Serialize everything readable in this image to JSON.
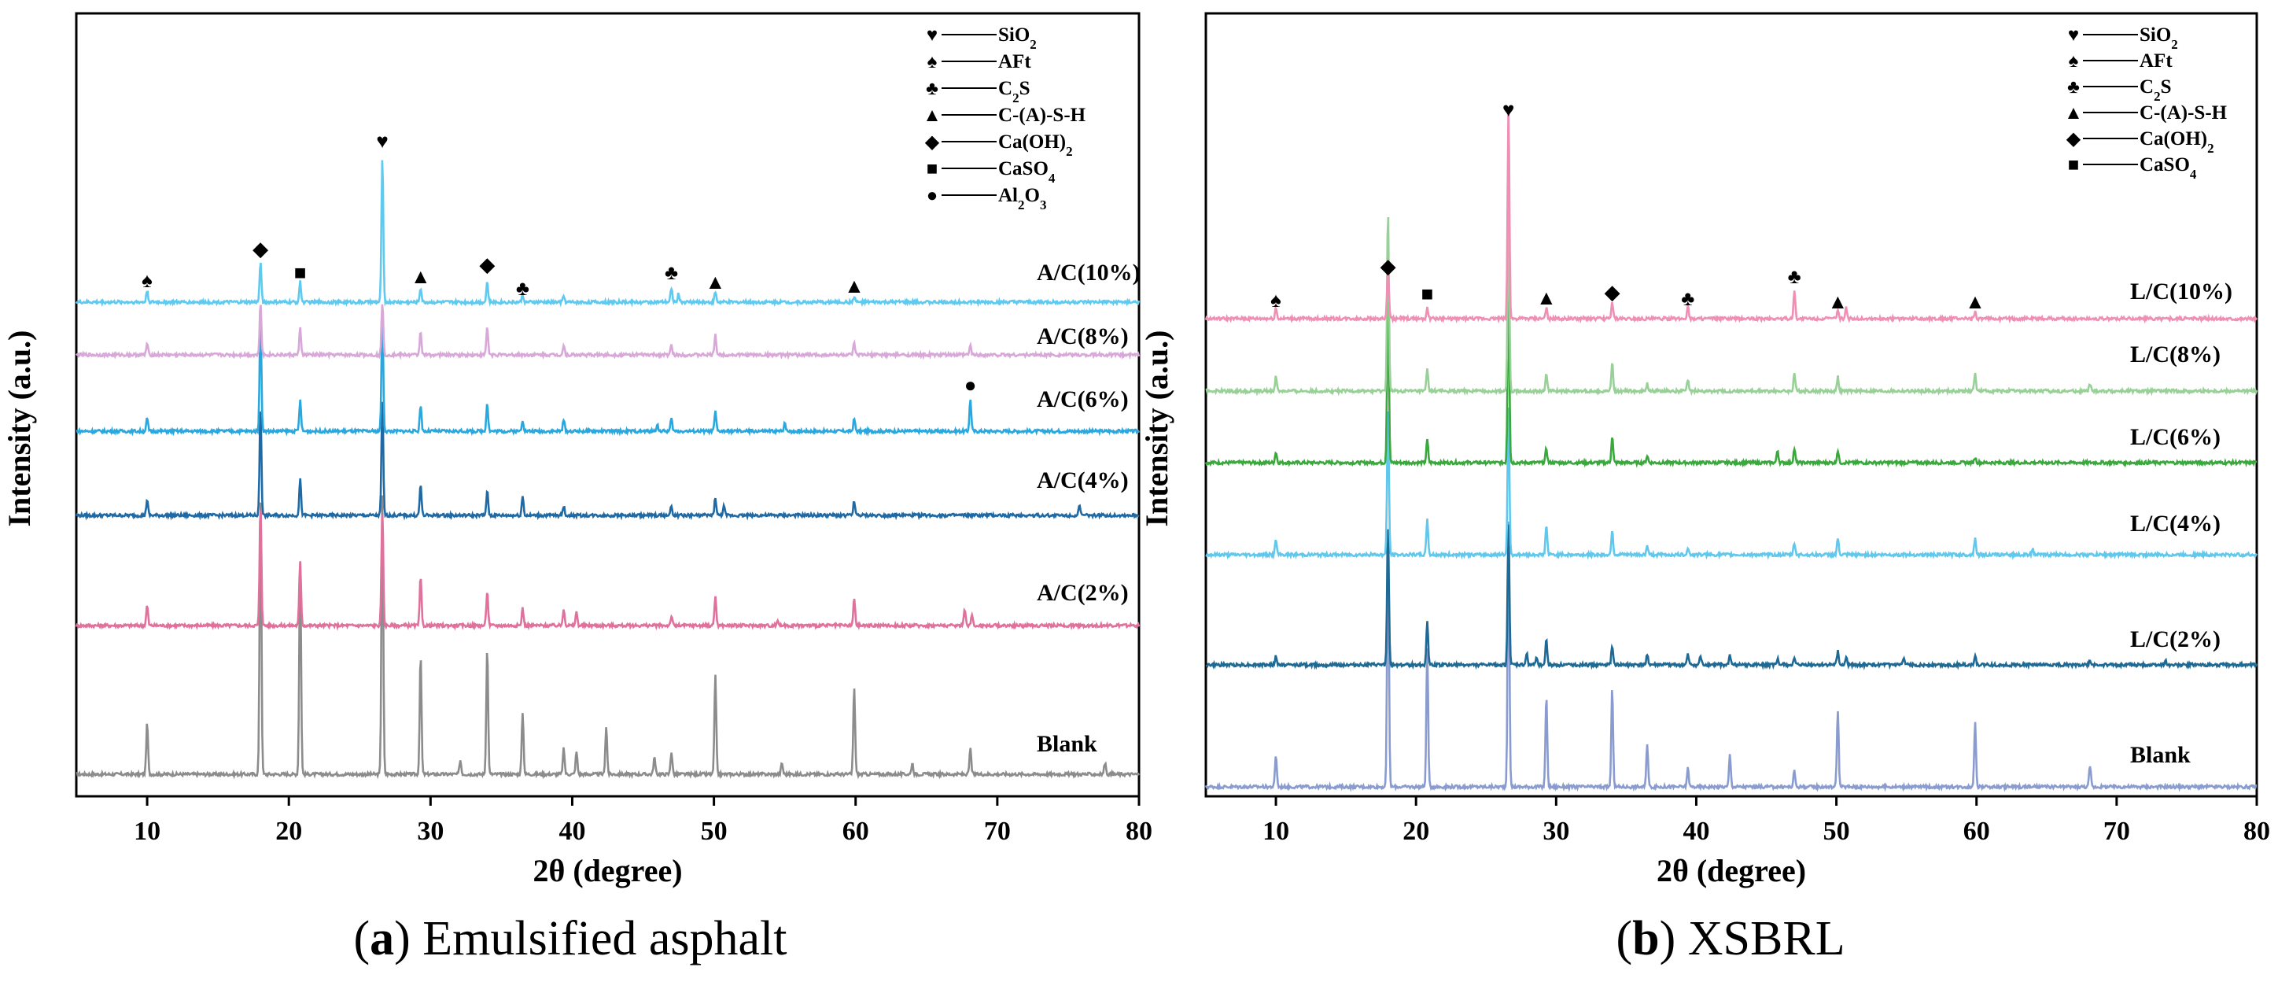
{
  "chart_data": [
    {
      "type": "line",
      "panel": "a",
      "caption_letter": "a",
      "caption_text": "Emulsified asphalt",
      "xlabel": "2θ (degree)",
      "ylabel": "Intensity (a.u.)",
      "xlim": [
        5,
        80
      ],
      "xticks": [
        10,
        20,
        30,
        40,
        50,
        60,
        70,
        80
      ],
      "grid": false,
      "legend": {
        "placement": "top-right",
        "entries": [
          {
            "symbol": "♥",
            "base": "SiO",
            "sub": "2",
            "tail": ""
          },
          {
            "symbol": "♠",
            "base": "AFt",
            "sub": "",
            "tail": ""
          },
          {
            "symbol": "♣",
            "base": "C",
            "sub": "2",
            "tail": "S"
          },
          {
            "symbol": "▲",
            "base": "C-(A)-S-H",
            "sub": "",
            "tail": ""
          },
          {
            "symbol": "◆",
            "base": "Ca(OH)",
            "sub": "2",
            "tail": ""
          },
          {
            "symbol": "■",
            "base": "CaSO",
            "sub": "4",
            "tail": ""
          },
          {
            "symbol": "●",
            "base": "Al",
            "sub": "2",
            "tail": "O",
            "sub2": "3"
          }
        ]
      },
      "series": [
        {
          "name": "Blank",
          "color": "#8c8c8c",
          "rel_scale": 1.0,
          "peaks": [
            [
              10.0,
              0.18
            ],
            [
              18.0,
              1.0
            ],
            [
              20.8,
              0.75
            ],
            [
              26.6,
              1.0
            ],
            [
              29.3,
              0.42
            ],
            [
              32.1,
              0.05
            ],
            [
              34.0,
              0.45
            ],
            [
              36.5,
              0.22
            ],
            [
              39.4,
              0.09
            ],
            [
              40.3,
              0.08
            ],
            [
              42.4,
              0.17
            ],
            [
              45.8,
              0.06
            ],
            [
              47.0,
              0.08
            ],
            [
              50.1,
              0.35
            ],
            [
              54.8,
              0.04
            ],
            [
              59.9,
              0.31
            ],
            [
              64.0,
              0.04
            ],
            [
              68.1,
              0.09
            ],
            [
              77.6,
              0.04
            ]
          ]
        },
        {
          "name": "A/C(2%)",
          "color": "#e0709c",
          "rel_scale": 1.0,
          "peaks": [
            [
              10.0,
              0.15
            ],
            [
              18.0,
              0.9
            ],
            [
              20.8,
              0.48
            ],
            [
              26.6,
              0.85
            ],
            [
              29.3,
              0.36
            ],
            [
              34.0,
              0.26
            ],
            [
              36.5,
              0.13
            ],
            [
              39.4,
              0.13
            ],
            [
              40.3,
              0.1
            ],
            [
              47.0,
              0.07
            ],
            [
              50.1,
              0.22
            ],
            [
              54.5,
              0.04
            ],
            [
              59.9,
              0.2
            ],
            [
              67.7,
              0.13
            ],
            [
              68.2,
              0.08
            ]
          ]
        },
        {
          "name": "A/C(4%)",
          "color": "#1f6aa5",
          "rel_scale": 1.0,
          "peaks": [
            [
              10.0,
              0.14
            ],
            [
              18.0,
              0.95
            ],
            [
              20.8,
              0.32
            ],
            [
              26.6,
              1.0
            ],
            [
              29.3,
              0.27
            ],
            [
              34.0,
              0.22
            ],
            [
              36.5,
              0.17
            ],
            [
              39.4,
              0.08
            ],
            [
              47.0,
              0.08
            ],
            [
              50.1,
              0.16
            ],
            [
              50.7,
              0.08
            ],
            [
              59.9,
              0.13
            ],
            [
              75.8,
              0.08
            ]
          ]
        },
        {
          "name": "A/C(6%)",
          "color": "#2aa8de",
          "rel_scale": 1.0,
          "peaks": [
            [
              10.0,
              0.11
            ],
            [
              18.0,
              1.0
            ],
            [
              20.8,
              0.27
            ],
            [
              26.6,
              1.0
            ],
            [
              29.3,
              0.23
            ],
            [
              34.0,
              0.25
            ],
            [
              36.5,
              0.1
            ],
            [
              39.4,
              0.1
            ],
            [
              46.0,
              0.06
            ],
            [
              47.0,
              0.11
            ],
            [
              50.1,
              0.17
            ],
            [
              55.0,
              0.08
            ],
            [
              59.9,
              0.11
            ],
            [
              68.1,
              0.28
            ]
          ]
        },
        {
          "name": "A/C(8%)",
          "color": "#d8a8d8",
          "rel_scale": 1.0,
          "peaks": [
            [
              10.0,
              0.12
            ],
            [
              18.0,
              0.55
            ],
            [
              20.8,
              0.28
            ],
            [
              26.6,
              0.55
            ],
            [
              29.3,
              0.25
            ],
            [
              34.0,
              0.3
            ],
            [
              39.4,
              0.1
            ],
            [
              47.0,
              0.1
            ],
            [
              50.1,
              0.22
            ],
            [
              59.9,
              0.12
            ],
            [
              68.1,
              0.1
            ]
          ]
        },
        {
          "name": "A/C(10%)",
          "color": "#5fcaf0",
          "rel_scale": 1.0,
          "peaks": [
            [
              10.0,
              0.08
            ],
            [
              18.0,
              0.28
            ],
            [
              20.8,
              0.14
            ],
            [
              26.6,
              1.0
            ],
            [
              29.3,
              0.1
            ],
            [
              34.0,
              0.14
            ],
            [
              36.5,
              0.05
            ],
            [
              39.4,
              0.04
            ],
            [
              47.0,
              0.1
            ],
            [
              47.5,
              0.06
            ],
            [
              50.1,
              0.07
            ],
            [
              59.9,
              0.04
            ]
          ]
        }
      ],
      "markers": [
        {
          "x": 10.0,
          "symbol": "♠"
        },
        {
          "x": 18.0,
          "symbol": "◆"
        },
        {
          "x": 20.8,
          "symbol": "■"
        },
        {
          "x": 26.6,
          "symbol": "♥"
        },
        {
          "x": 29.3,
          "symbol": "▲"
        },
        {
          "x": 34.0,
          "symbol": "◆"
        },
        {
          "x": 36.5,
          "symbol": "♣"
        },
        {
          "x": 47.0,
          "symbol": "♣"
        },
        {
          "x": 50.1,
          "symbol": "▲"
        },
        {
          "x": 59.9,
          "symbol": "▲"
        },
        {
          "x": 68.1,
          "symbol": "●"
        }
      ]
    },
    {
      "type": "line",
      "panel": "b",
      "caption_letter": "b",
      "caption_text": "XSBRL",
      "xlabel": "2θ (degree)",
      "ylabel": "Intensity (a.u.)",
      "xlim": [
        5,
        80
      ],
      "xticks": [
        10,
        20,
        30,
        40,
        50,
        60,
        70,
        80
      ],
      "grid": false,
      "legend": {
        "placement": "top-right",
        "entries": [
          {
            "symbol": "♥",
            "base": "SiO",
            "sub": "2",
            "tail": ""
          },
          {
            "symbol": "♠",
            "base": "AFt",
            "sub": "",
            "tail": ""
          },
          {
            "symbol": "♣",
            "base": "C",
            "sub": "2",
            "tail": "S"
          },
          {
            "symbol": "▲",
            "base": "C-(A)-S-H",
            "sub": "",
            "tail": ""
          },
          {
            "symbol": "◆",
            "base": "Ca(OH)",
            "sub": "2",
            "tail": ""
          },
          {
            "symbol": "■",
            "base": "CaSO",
            "sub": "4",
            "tail": ""
          }
        ]
      },
      "series": [
        {
          "name": "Blank",
          "color": "#8a9ccf",
          "rel_scale": 1.0,
          "peaks": [
            [
              10.0,
              0.12
            ],
            [
              18.0,
              1.0
            ],
            [
              20.8,
              0.52
            ],
            [
              26.6,
              1.0
            ],
            [
              29.3,
              0.34
            ],
            [
              34.0,
              0.37
            ],
            [
              36.5,
              0.16
            ],
            [
              39.4,
              0.07
            ],
            [
              42.4,
              0.12
            ],
            [
              47.0,
              0.06
            ],
            [
              50.1,
              0.29
            ],
            [
              59.9,
              0.24
            ],
            [
              68.1,
              0.08
            ]
          ]
        },
        {
          "name": "L/C(2%)",
          "color": "#1f6a94",
          "rel_scale": 1.0,
          "peaks": [
            [
              10.0,
              0.06
            ],
            [
              18.0,
              1.0
            ],
            [
              20.8,
              0.31
            ],
            [
              26.6,
              1.0
            ],
            [
              27.9,
              0.08
            ],
            [
              28.6,
              0.06
            ],
            [
              29.3,
              0.18
            ],
            [
              34.0,
              0.14
            ],
            [
              36.5,
              0.08
            ],
            [
              39.4,
              0.07
            ],
            [
              40.3,
              0.06
            ],
            [
              42.4,
              0.07
            ],
            [
              45.8,
              0.04
            ],
            [
              47.0,
              0.04
            ],
            [
              50.1,
              0.1
            ],
            [
              50.7,
              0.05
            ],
            [
              54.8,
              0.04
            ],
            [
              59.9,
              0.07
            ],
            [
              68.1,
              0.03
            ],
            [
              73.5,
              0.03
            ]
          ]
        },
        {
          "name": "L/C(4%)",
          "color": "#60c8ec",
          "rel_scale": 1.0,
          "peaks": [
            [
              10.0,
              0.1
            ],
            [
              18.0,
              1.0
            ],
            [
              20.8,
              0.24
            ],
            [
              26.6,
              1.0
            ],
            [
              29.3,
              0.2
            ],
            [
              34.0,
              0.17
            ],
            [
              36.5,
              0.06
            ],
            [
              39.4,
              0.05
            ],
            [
              47.0,
              0.08
            ],
            [
              50.1,
              0.11
            ],
            [
              59.9,
              0.11
            ],
            [
              64.0,
              0.04
            ]
          ]
        },
        {
          "name": "L/C(6%)",
          "color": "#3aa83c",
          "rel_scale": 1.0,
          "peaks": [
            [
              10.0,
              0.06
            ],
            [
              18.0,
              1.0
            ],
            [
              20.8,
              0.13
            ],
            [
              26.6,
              1.0
            ],
            [
              29.3,
              0.08
            ],
            [
              34.0,
              0.15
            ],
            [
              36.5,
              0.04
            ],
            [
              45.8,
              0.07
            ],
            [
              47.0,
              0.08
            ],
            [
              50.1,
              0.07
            ],
            [
              59.9,
              0.03
            ]
          ]
        },
        {
          "name": "L/C(8%)",
          "color": "#98d098",
          "rel_scale": 1.0,
          "peaks": [
            [
              10.0,
              0.08
            ],
            [
              18.0,
              1.0
            ],
            [
              20.8,
              0.12
            ],
            [
              26.6,
              1.0
            ],
            [
              29.3,
              0.1
            ],
            [
              34.0,
              0.16
            ],
            [
              36.5,
              0.04
            ],
            [
              39.4,
              0.06
            ],
            [
              47.0,
              0.1
            ],
            [
              50.1,
              0.08
            ],
            [
              59.9,
              0.1
            ],
            [
              68.1,
              0.04
            ]
          ]
        },
        {
          "name": "L/C(10%)",
          "color": "#ef8fb4",
          "rel_scale": 1.0,
          "peaks": [
            [
              10.0,
              0.05
            ],
            [
              18.0,
              0.25
            ],
            [
              20.8,
              0.05
            ],
            [
              26.6,
              1.0
            ],
            [
              29.3,
              0.05
            ],
            [
              34.0,
              0.08
            ],
            [
              39.4,
              0.06
            ],
            [
              47.0,
              0.13
            ],
            [
              50.1,
              0.04
            ],
            [
              50.7,
              0.05
            ],
            [
              59.9,
              0.03
            ]
          ]
        }
      ],
      "markers": [
        {
          "x": 10.0,
          "symbol": "♠"
        },
        {
          "x": 18.0,
          "symbol": "◆"
        },
        {
          "x": 20.8,
          "symbol": "■"
        },
        {
          "x": 26.6,
          "symbol": "♥"
        },
        {
          "x": 29.3,
          "symbol": "▲"
        },
        {
          "x": 34.0,
          "symbol": "◆"
        },
        {
          "x": 39.4,
          "symbol": "♣"
        },
        {
          "x": 47.0,
          "symbol": "♣"
        },
        {
          "x": 50.1,
          "symbol": "▲"
        },
        {
          "x": 59.9,
          "symbol": "▲"
        }
      ]
    }
  ]
}
